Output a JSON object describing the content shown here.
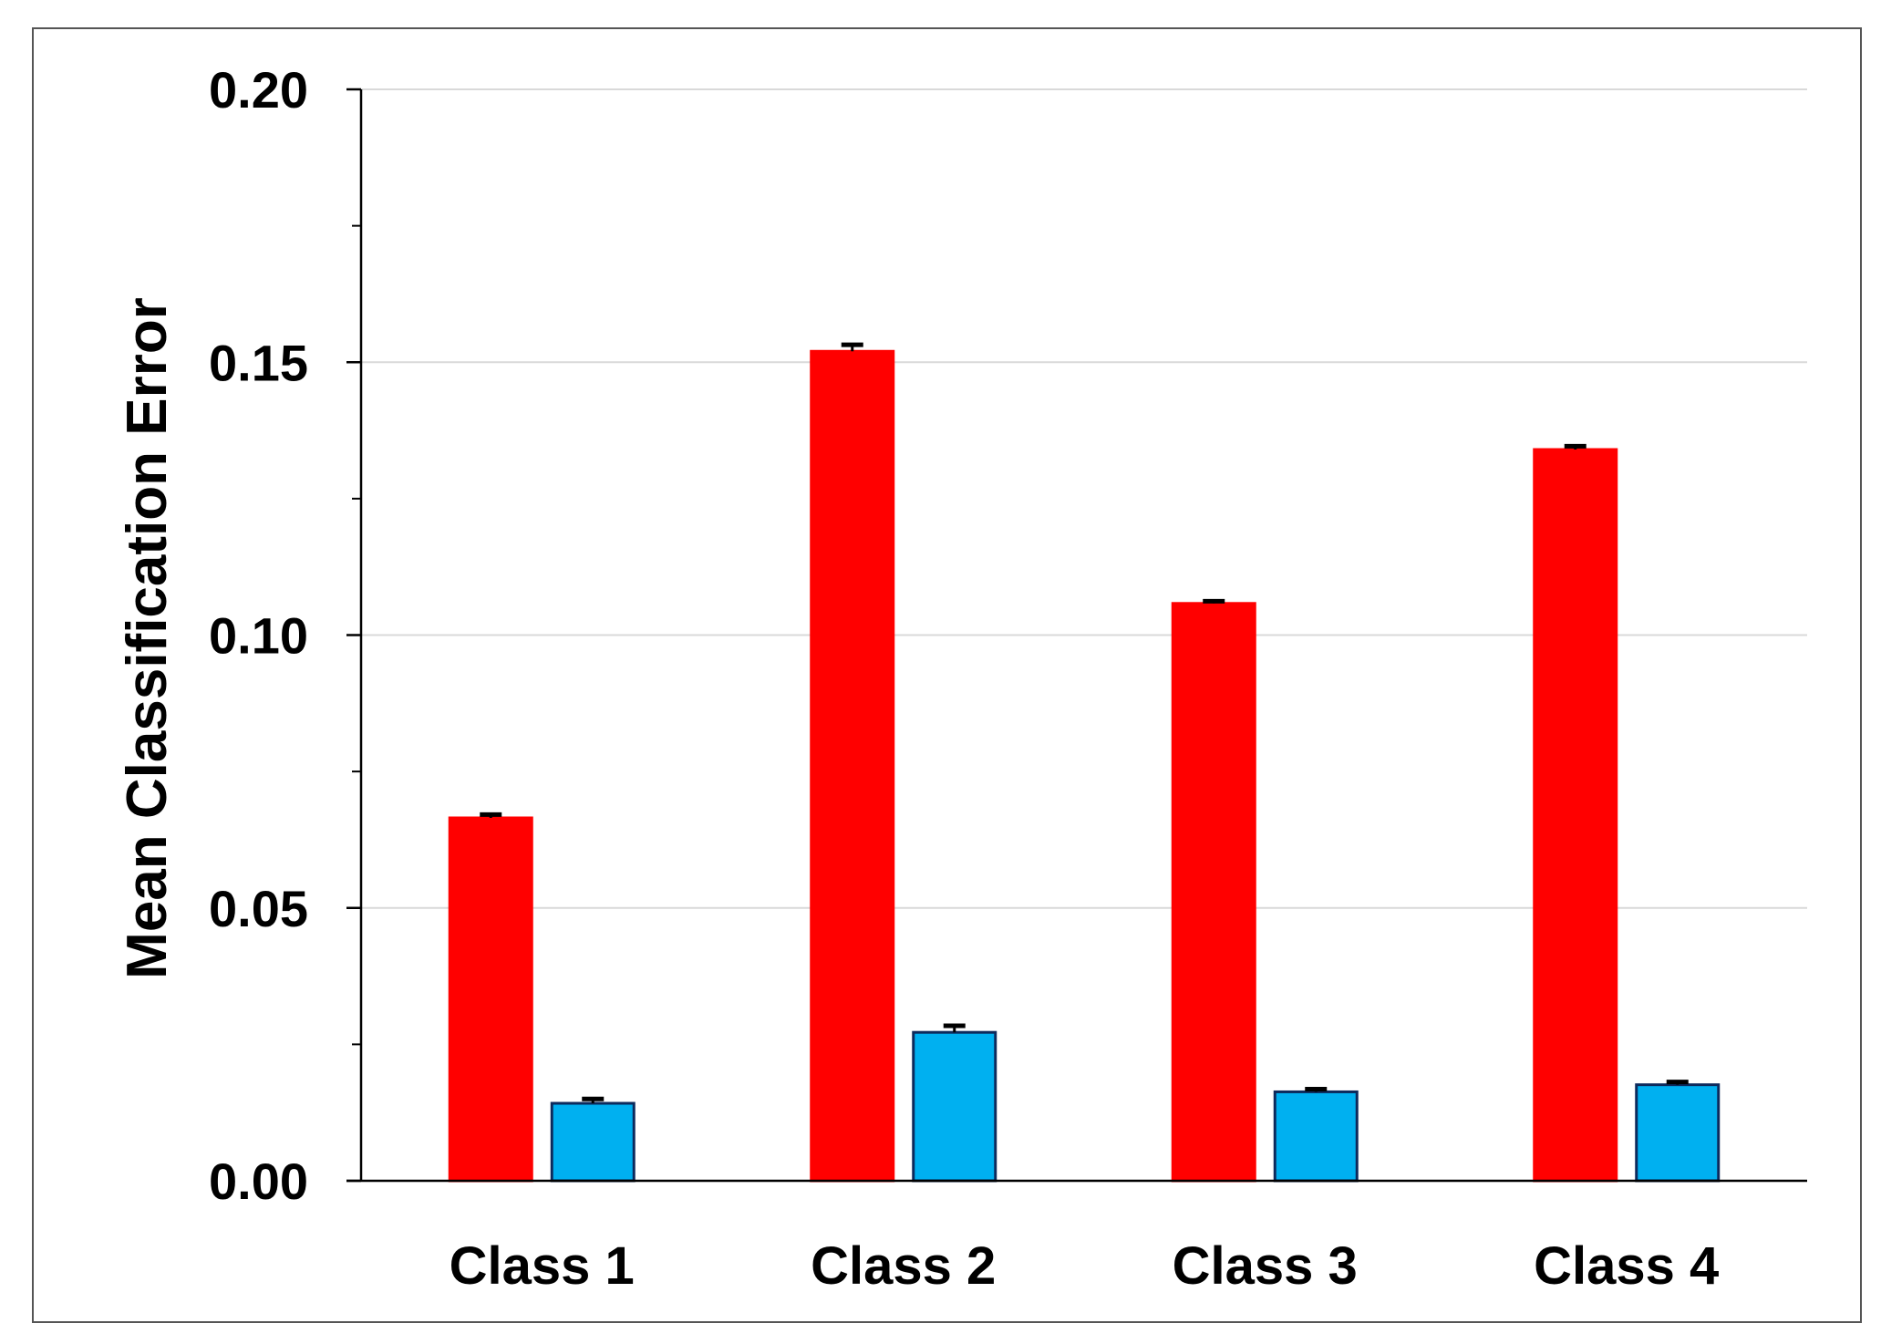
{
  "chart_data": {
    "type": "bar",
    "title": "",
    "xlabel": "",
    "ylabel": "Mean Classification Error",
    "ylim": [
      0,
      0.2
    ],
    "yticks": [
      "0.00",
      "0.05",
      "0.10",
      "0.15",
      "0.20"
    ],
    "ytick_values": [
      0,
      0.05,
      0.1,
      0.15,
      0.2
    ],
    "minor_ytick_values": [
      0.025,
      0.075,
      0.125,
      0.175
    ],
    "categories": [
      "Class 1",
      "Class 2",
      "Class 3",
      "Class 4"
    ],
    "grid": "horizontal",
    "legend": "none",
    "series": [
      {
        "color": "#ff0000",
        "edge_color": "#ff0000",
        "values": [
          0.0665,
          0.152,
          0.1058,
          0.134
        ],
        "errors": [
          0.0006,
          0.0012,
          0.0004,
          0.0006
        ]
      },
      {
        "color": "#00b0f0",
        "edge_color": "#0d2a5c",
        "values": [
          0.0142,
          0.0272,
          0.0163,
          0.0176
        ],
        "errors": [
          0.0008,
          0.0012,
          0.0005,
          0.0005
        ]
      }
    ]
  }
}
